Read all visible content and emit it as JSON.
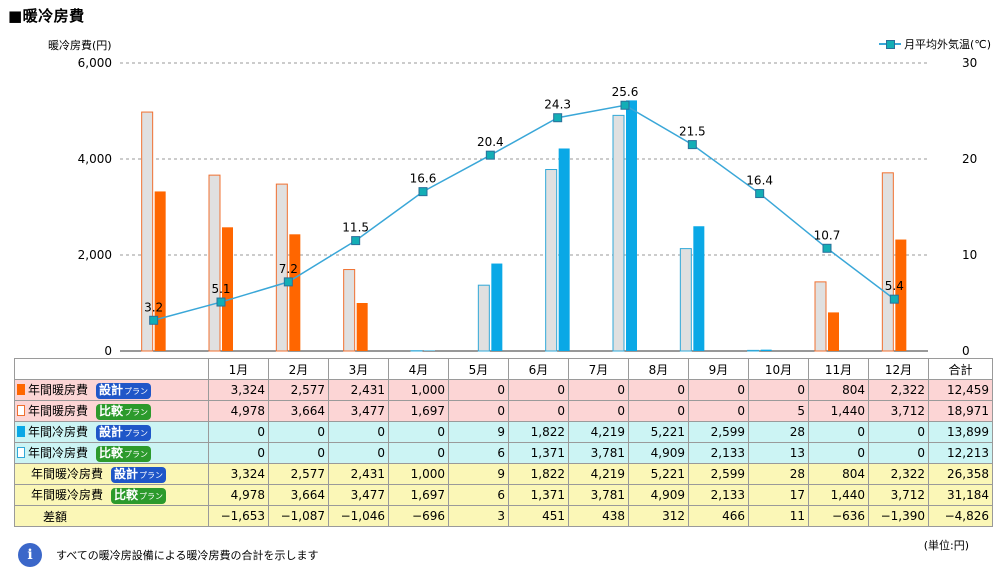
{
  "title": "■暖冷房費",
  "chart_data": {
    "type": "bar",
    "categories": [
      "1月",
      "2月",
      "3月",
      "4月",
      "5月",
      "6月",
      "7月",
      "8月",
      "9月",
      "10月",
      "11月",
      "12月"
    ],
    "y_left": {
      "label": "暖冷房費(円)",
      "ticks": [
        "6,000",
        "4,000",
        "2,000",
        "0"
      ],
      "range": [
        0,
        6000
      ]
    },
    "y_right": {
      "label": "月平均外気温(℃)",
      "ticks": [
        "30",
        "20",
        "10",
        "0"
      ],
      "range": [
        0,
        30
      ]
    },
    "series": [
      {
        "name": "年間暖房費 設計プラン",
        "kind": "heat-design",
        "values": [
          3324,
          2577,
          2431,
          1000,
          0,
          0,
          0,
          0,
          0,
          0,
          804,
          2322
        ]
      },
      {
        "name": "年間暖房費 比較プラン",
        "kind": "heat-compare",
        "values": [
          4978,
          3664,
          3477,
          1697,
          0,
          0,
          0,
          0,
          0,
          5,
          1440,
          3712
        ]
      },
      {
        "name": "年間冷房費 設計プラン",
        "kind": "cool-design",
        "values": [
          0,
          0,
          0,
          0,
          9,
          1822,
          4219,
          5221,
          2599,
          28,
          0,
          0
        ]
      },
      {
        "name": "年間冷房費 比較プラン",
        "kind": "cool-compare",
        "values": [
          0,
          0,
          0,
          0,
          6,
          1371,
          3781,
          4909,
          2133,
          13,
          0,
          0
        ]
      }
    ],
    "temperature": {
      "name": "月平均外気温(℃)",
      "values": [
        3.2,
        5.1,
        7.2,
        11.5,
        16.6,
        20.4,
        24.3,
        25.6,
        21.5,
        16.4,
        10.7,
        5.4
      ]
    },
    "grid": true,
    "legend_position": "top-right",
    "colors": {
      "heat_design": "#ff6600",
      "heat_compare_fill": "#e0e0e0",
      "heat_compare_border": "#f07030",
      "cool_design": "#0aa8e6",
      "cool_compare_fill": "#e0e0e0",
      "cool_compare_border": "#30a8d8",
      "temp_line": "#3aa7d8",
      "temp_marker": "#13aeb6"
    }
  },
  "table": {
    "header_months": [
      "1月",
      "2月",
      "3月",
      "4月",
      "5月",
      "6月",
      "7月",
      "8月",
      "9月",
      "10月",
      "11月",
      "12月"
    ],
    "total_label": "合計",
    "rows": [
      {
        "label": "年間暖房費",
        "badge": "設計",
        "badge_suffix": "プラン",
        "badge_color": "blue",
        "marker": "heat-design",
        "values": [
          "3,324",
          "2,577",
          "2,431",
          "1,000",
          "0",
          "0",
          "0",
          "0",
          "0",
          "0",
          "804",
          "2,322"
        ],
        "total": "12,459"
      },
      {
        "label": "年間暖房費",
        "badge": "比較",
        "badge_suffix": "プラン",
        "badge_color": "green",
        "marker": "heat-compare",
        "values": [
          "4,978",
          "3,664",
          "3,477",
          "1,697",
          "0",
          "0",
          "0",
          "0",
          "0",
          "5",
          "1,440",
          "3,712"
        ],
        "total": "18,971"
      },
      {
        "label": "年間冷房費",
        "badge": "設計",
        "badge_suffix": "プラン",
        "badge_color": "blue",
        "marker": "cool-design",
        "values": [
          "0",
          "0",
          "0",
          "0",
          "9",
          "1,822",
          "4,219",
          "5,221",
          "2,599",
          "28",
          "0",
          "0"
        ],
        "total": "13,899"
      },
      {
        "label": "年間冷房費",
        "badge": "比較",
        "badge_suffix": "プラン",
        "badge_color": "green",
        "marker": "cool-compare",
        "values": [
          "0",
          "0",
          "0",
          "0",
          "6",
          "1,371",
          "3,781",
          "4,909",
          "2,133",
          "13",
          "0",
          "0"
        ],
        "total": "12,213"
      },
      {
        "label": "年間暖冷房費",
        "badge": "設計",
        "badge_suffix": "プラン",
        "badge_color": "blue",
        "marker": "",
        "values": [
          "3,324",
          "2,577",
          "2,431",
          "1,000",
          "9",
          "1,822",
          "4,219",
          "5,221",
          "2,599",
          "28",
          "804",
          "2,322"
        ],
        "total": "26,358"
      },
      {
        "label": "年間暖冷房費",
        "badge": "比較",
        "badge_suffix": "プラン",
        "badge_color": "green",
        "marker": "",
        "values": [
          "4,978",
          "3,664",
          "3,477",
          "1,697",
          "6",
          "1,371",
          "3,781",
          "4,909",
          "2,133",
          "17",
          "1,440",
          "3,712"
        ],
        "total": "31,184"
      },
      {
        "label": "差額",
        "badge": "",
        "badge_suffix": "",
        "badge_color": "",
        "marker": "",
        "values": [
          "−1,653",
          "−1,087",
          "−1,046",
          "−696",
          "3",
          "451",
          "438",
          "312",
          "466",
          "11",
          "−636",
          "−1,390"
        ],
        "total": "−4,826"
      }
    ]
  },
  "unit_note": "(単位:円)",
  "footnote": "すべての暖冷房設備による暖冷房費の合計を示します"
}
